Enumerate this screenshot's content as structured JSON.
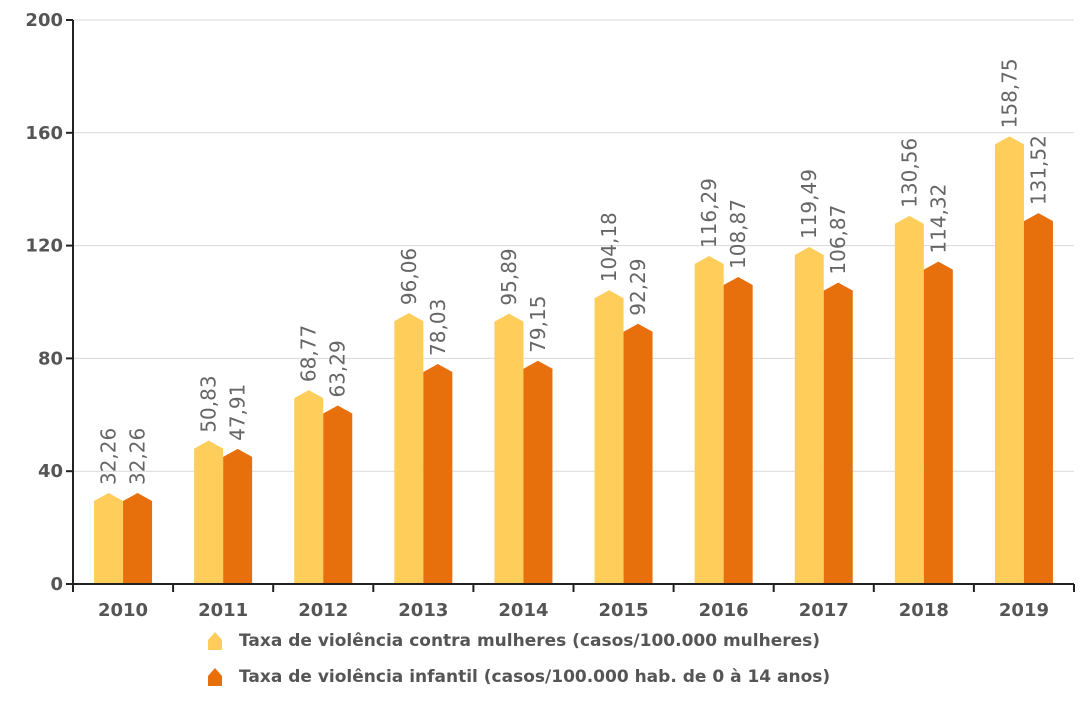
{
  "chart_data": {
    "type": "bar",
    "categories": [
      "2010",
      "2011",
      "2012",
      "2013",
      "2014",
      "2015",
      "2016",
      "2017",
      "2018",
      "2019"
    ],
    "series": [
      {
        "name": "Taxa de violência contra mulheres (casos/100.000 mulheres)",
        "color": "#fecd5a",
        "values": [
          32.26,
          50.83,
          68.77,
          96.06,
          95.89,
          104.18,
          116.29,
          119.49,
          130.56,
          158.75
        ],
        "labels": [
          "32,26",
          "50,83",
          "68,77",
          "96,06",
          "95,89",
          "104,18",
          "116,29",
          "119,49",
          "130,56",
          "158,75"
        ]
      },
      {
        "name": "Taxa de violência infantil (casos/100.000 hab. de 0 à 14 anos)",
        "color": "#e8700c",
        "values": [
          32.26,
          47.91,
          63.29,
          78.03,
          79.15,
          92.29,
          108.87,
          106.87,
          114.32,
          131.52
        ],
        "labels": [
          "32,26",
          "47,91",
          "63,29",
          "78,03",
          "79,15",
          "92,29",
          "108,87",
          "106,87",
          "114,32",
          "131,52"
        ]
      }
    ],
    "y_ticks": [
      "0",
      "40",
      "80",
      "120",
      "160",
      "200"
    ],
    "ylim": [
      0,
      200
    ],
    "grid": true,
    "legend_position": "bottom",
    "title": "",
    "xlabel": "",
    "ylabel": ""
  }
}
